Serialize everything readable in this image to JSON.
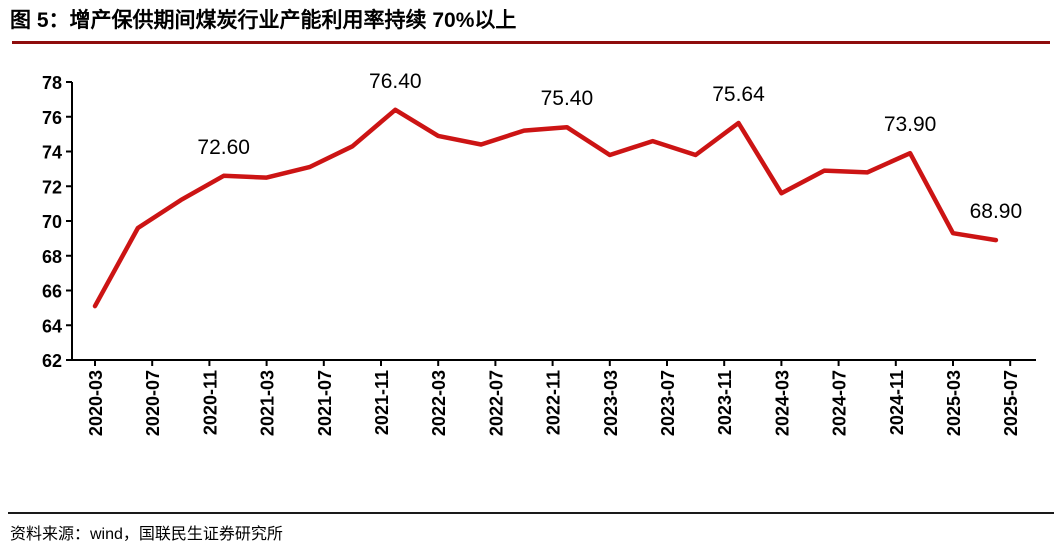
{
  "header": {
    "title": "图 5：增产保供期间煤炭行业产能利用率持续 70%以上"
  },
  "footer": {
    "source": "资料来源：wind，国联民生证券研究所"
  },
  "colors": {
    "line": "#cc1414",
    "title_rule": "#8e0c0c",
    "footer_rule": "#1a1a1a",
    "axis": "#000000",
    "text": "#000000",
    "background": "#ffffff"
  },
  "chart_data": {
    "type": "line",
    "title": "增产保供期间煤炭行业产能利用率持续 70%以上",
    "xlabel": "",
    "ylabel": "",
    "ylim": [
      62,
      78
    ],
    "y_ticks": [
      62,
      64,
      66,
      68,
      70,
      72,
      74,
      76,
      78
    ],
    "grid": false,
    "legend_position": "none",
    "line_color": "#cc1414",
    "x_tick_labels": [
      "2020-03",
      "2020-07",
      "2020-11",
      "2021-03",
      "2021-07",
      "2021-11",
      "2022-03",
      "2022-07",
      "2022-11",
      "2023-03",
      "2023-07",
      "2023-11",
      "2024-03",
      "2024-07",
      "2024-11",
      "2025-03",
      "2025-07"
    ],
    "categories": [
      "2020-03",
      "2020-06",
      "2020-09",
      "2020-12",
      "2021-03",
      "2021-06",
      "2021-09",
      "2021-12",
      "2022-03",
      "2022-06",
      "2022-09",
      "2022-12",
      "2023-03",
      "2023-06",
      "2023-09",
      "2023-12",
      "2024-03",
      "2024-06",
      "2024-09",
      "2024-12",
      "2025-03",
      "2025-06"
    ],
    "values": [
      65.1,
      69.6,
      71.2,
      72.6,
      72.5,
      73.1,
      74.3,
      76.4,
      74.9,
      74.4,
      75.2,
      75.4,
      73.8,
      74.6,
      73.8,
      75.64,
      71.6,
      72.9,
      72.8,
      73.9,
      69.3,
      68.9
    ],
    "data_labels": [
      {
        "point_index": 3,
        "text": "72.60"
      },
      {
        "point_index": 7,
        "text": "76.40"
      },
      {
        "point_index": 11,
        "text": "75.40"
      },
      {
        "point_index": 15,
        "text": "75.64"
      },
      {
        "point_index": 19,
        "text": "73.90"
      },
      {
        "point_index": 21,
        "text": "68.90"
      }
    ]
  }
}
